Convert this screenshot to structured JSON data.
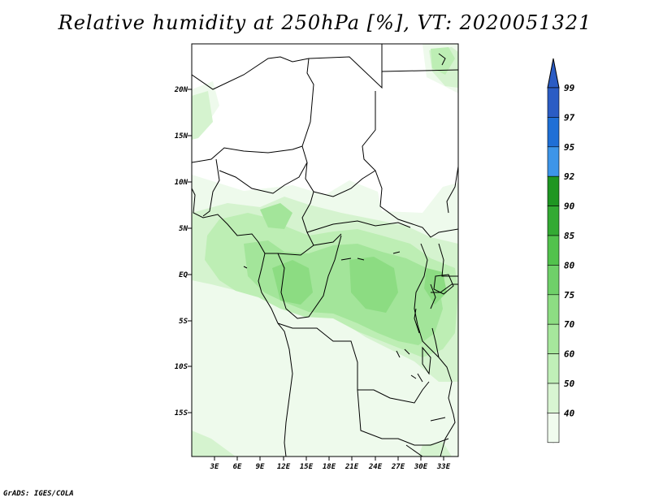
{
  "title": "Relative humidity at 250hPa [%], VT: 2020051321",
  "credit": "GrADS: IGES/COLA",
  "colors": {
    "c40": "#f0fbee",
    "c50": "#d8f5d2",
    "c60": "#c0efb8",
    "c70": "#a6e79c",
    "c75": "#8ddd83",
    "c80": "#6fd069",
    "c85": "#52c24d",
    "c90": "#33aa33",
    "c92": "#1f9622",
    "c95": "#3d95e8",
    "c97": "#1f6fd6",
    "c99": "#2b5cc4",
    "border": "#000000"
  },
  "map": {
    "lat_labels": [
      "20N",
      "15N",
      "10N",
      "5N",
      "EQ",
      "5S",
      "10S",
      "15S"
    ],
    "lat_values": [
      20,
      15,
      10,
      5,
      0,
      -5,
      -10,
      -15
    ],
    "lon_labels": [
      "3E",
      "6E",
      "9E",
      "12E",
      "15E",
      "18E",
      "21E",
      "24E",
      "27E",
      "30E",
      "33E"
    ],
    "lon_values": [
      3,
      6,
      9,
      12,
      15,
      18,
      21,
      24,
      27,
      30,
      33
    ]
  },
  "colorbar": {
    "labels": [
      "99",
      "97",
      "95",
      "92",
      "90",
      "85",
      "80",
      "75",
      "70",
      "60",
      "50",
      "40"
    ],
    "colors": [
      "#2b5cc4",
      "#1f6fd6",
      "#3d95e8",
      "#1f9622",
      "#33aa33",
      "#52c24d",
      "#6fd069",
      "#8ddd83",
      "#a6e79c",
      "#c0efb8",
      "#d8f5d2",
      "#f0fbee"
    ]
  }
}
